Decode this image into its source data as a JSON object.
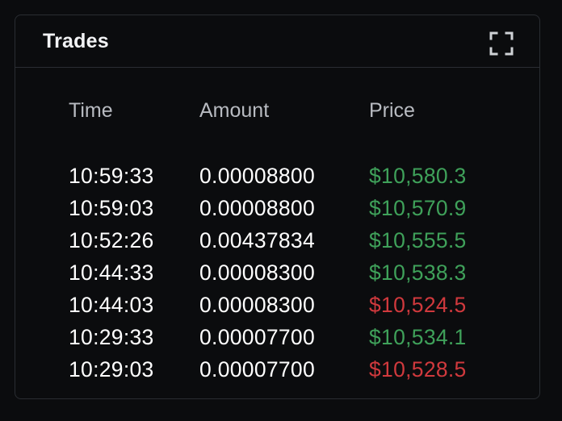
{
  "panel": {
    "title": "Trades",
    "expand_icon": "expand-icon"
  },
  "table": {
    "headers": {
      "time": "Time",
      "amount": "Amount",
      "price": "Price"
    },
    "rows": [
      {
        "time": "10:59:33",
        "amount": "0.00008800",
        "price": "$10,580.3",
        "direction": "up"
      },
      {
        "time": "10:59:03",
        "amount": "0.00008800",
        "price": "$10,570.9",
        "direction": "up"
      },
      {
        "time": "10:52:26",
        "amount": "0.00437834",
        "price": "$10,555.5",
        "direction": "up"
      },
      {
        "time": "10:44:33",
        "amount": "0.00008300",
        "price": "$10,538.3",
        "direction": "up"
      },
      {
        "time": "10:44:03",
        "amount": "0.00008300",
        "price": "$10,524.5",
        "direction": "down"
      },
      {
        "time": "10:29:33",
        "amount": "0.00007700",
        "price": "$10,534.1",
        "direction": "up"
      },
      {
        "time": "10:29:03",
        "amount": "0.00007700",
        "price": "$10,528.5",
        "direction": "down"
      }
    ]
  },
  "colors": {
    "up": "#3fa15a",
    "down": "#d0393d",
    "background": "#0b0c0e",
    "border": "#2a2d32"
  }
}
